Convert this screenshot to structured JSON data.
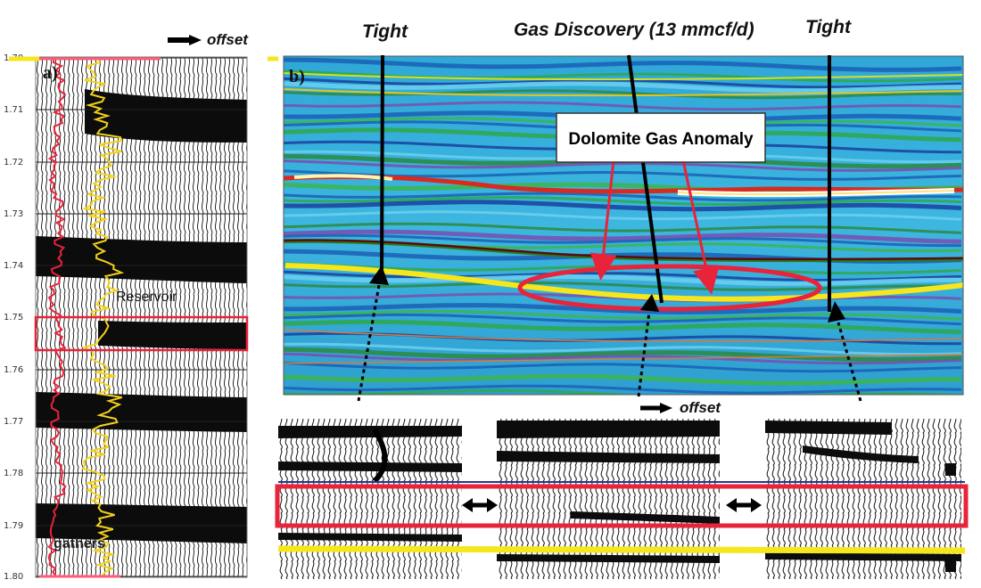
{
  "panel_a": {
    "label": "a)",
    "offset_label": "offset",
    "reservoir_label": "Reservoir",
    "gathers_label": "gathers",
    "time_ticks": [
      "1.70",
      "1.71",
      "1.72",
      "1.73",
      "1.74",
      "1.75",
      "1.76",
      "1.77",
      "1.78",
      "1.79",
      "1.80"
    ],
    "colors": {
      "log_red": "#e8233a",
      "log_yellow": "#f3d21b",
      "box": "#e8233a",
      "horizon": "#f6e61c"
    }
  },
  "panel_b": {
    "label": "b)",
    "well_left_label": "Tight",
    "well_center_label": "Gas Discovery (13 mmcf/d)",
    "well_right_label": "Tight",
    "anomaly_label": "Dolomite Gas Anomaly",
    "gathers_offset_label": "offset",
    "colors": {
      "anomaly_outline": "#e8233a",
      "horizon_yellow": "#f6e61c",
      "red_box": "#e8233a"
    }
  }
}
